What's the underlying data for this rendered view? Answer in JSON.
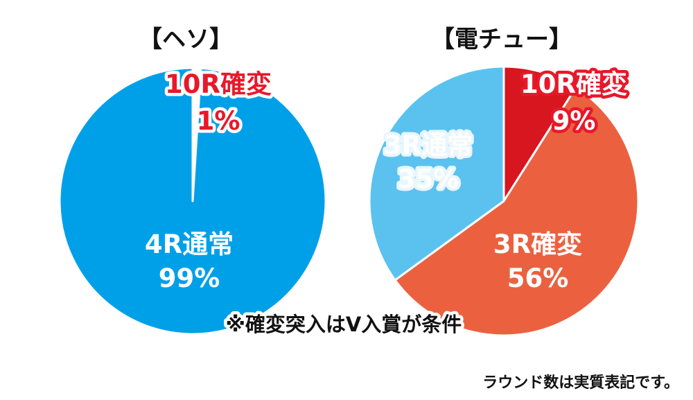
{
  "chart_data": [
    {
      "type": "pie",
      "title": "【ヘソ】",
      "slices": [
        {
          "label": "10R確変",
          "value": 1,
          "value_label": "1%",
          "color": "#ffffff",
          "label_style": "red"
        },
        {
          "label": "4R通常",
          "value": 99,
          "value_label": "99%",
          "color": "#00a0e9",
          "label_style": "white"
        }
      ]
    },
    {
      "type": "pie",
      "title": "【電チュー】",
      "slices": [
        {
          "label": "10R確変",
          "value": 9,
          "value_label": "9%",
          "color": "#d7161f",
          "label_style": "red"
        },
        {
          "label": "3R確変",
          "value": 56,
          "value_label": "56%",
          "color": "#eb6140",
          "label_style": "white"
        },
        {
          "label": "3R通常",
          "value": 35,
          "value_label": "35%",
          "color": "#5bc2f0",
          "label_style": "halo"
        }
      ]
    }
  ],
  "note": "※確変突入はV入賞が条件",
  "footer": "ラウンド数は実質表記です。"
}
